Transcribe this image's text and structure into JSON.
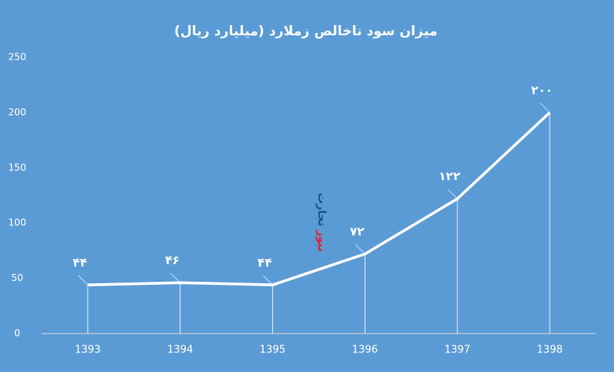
{
  "chart_data": {
    "type": "line",
    "title": "میزان سود ناخالص زملارد  (میلیارد ریال)",
    "categories": [
      "1393",
      "1394",
      "1395",
      "1396",
      "1397",
      "1398"
    ],
    "values": [
      44,
      46,
      44,
      72,
      122,
      200
    ],
    "value_labels": [
      "۴۴",
      "۴۶",
      "۴۴",
      "۷۲",
      "۱۲۲",
      "۲۰۰"
    ],
    "color": "#ffffff",
    "ylim": [
      0,
      250
    ],
    "yticks": [
      0,
      50,
      100,
      150,
      200,
      250
    ],
    "watermark": {
      "first": "تجارت",
      "second": "نیوز"
    }
  }
}
